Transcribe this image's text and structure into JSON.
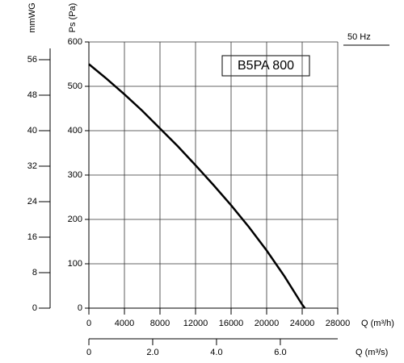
{
  "chart_data": {
    "type": "line",
    "model_label": "B5PA 800",
    "frequency_label": "50 Hz",
    "xlabel": "Q (m³/h)",
    "ylabel": "Ps (Pa)",
    "y2label": "mmWG",
    "x2label": "Q (m³/s)",
    "xlim": [
      0,
      28000
    ],
    "xticks": [
      0,
      4000,
      8000,
      12000,
      16000,
      20000,
      24000,
      28000
    ],
    "ylim": [
      0,
      600
    ],
    "yticks": [
      0,
      100,
      200,
      300,
      400,
      500,
      600
    ],
    "y2lim": [
      0,
      60
    ],
    "y2ticks": [
      0,
      8,
      16,
      24,
      32,
      40,
      48,
      56
    ],
    "x2lim": [
      0,
      7.8
    ],
    "x2ticks": [
      0,
      {
        "value": 2,
        "label": "2.0"
      },
      {
        "value": 4,
        "label": "4.0"
      },
      {
        "value": 6,
        "label": "6.0"
      }
    ],
    "grid": true,
    "series": [
      {
        "color": "#000000",
        "x": [
          0,
          2000,
          4000,
          6000,
          8000,
          10000,
          12000,
          14000,
          16000,
          18000,
          20000,
          22000,
          24000,
          24300
        ],
        "values": [
          550,
          517,
          482,
          445,
          405,
          365,
          322,
          278,
          232,
          183,
          130,
          72,
          8,
          0
        ]
      }
    ]
  }
}
